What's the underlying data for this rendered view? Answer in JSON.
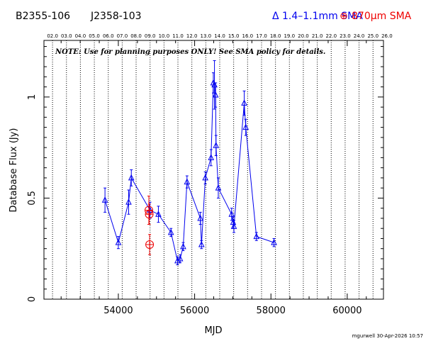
{
  "header": {
    "source_name": "B2355-106",
    "alt_name": "J2358-103",
    "legend": [
      {
        "symbol": "Δ",
        "label": "1.4–1.1mm SMA",
        "color": "#0000ee"
      },
      {
        "symbol": "⊕",
        "label": "870μm SMA",
        "color": "#ee0000"
      }
    ]
  },
  "note": "NOTE: Use for planning purposes ONLY! See SMA policy for details.",
  "footer": "mgurwell 30-Apr-2026 10:57",
  "chart_data": {
    "type": "scatter",
    "xlabel": "MJD",
    "ylabel": "Database Flux (Jy)",
    "xlim": [
      52050,
      60950
    ],
    "ylim": [
      0,
      1.28
    ],
    "x_ticks": [
      54000,
      56000,
      58000,
      60000
    ],
    "y_ticks": [
      0,
      0.5,
      1
    ],
    "y_tick_labels": [
      "0",
      "0.5",
      "1"
    ],
    "top_axis": {
      "labels": [
        "02.0",
        "03.0",
        "04.0",
        "05.0",
        "06.0",
        "07.0",
        "08.0",
        "09.0",
        "10.0",
        "11.0",
        "12.0",
        "13.0",
        "14.0",
        "15.0",
        "16.0",
        "17.0",
        "18.0",
        "19.0",
        "20.0",
        "21.0",
        "22.0",
        "23.0",
        "24.0",
        "25.0",
        "26.0"
      ],
      "mjd": [
        52275,
        52640,
        53005,
        53371,
        53736,
        54101,
        54466,
        54832,
        55197,
        55562,
        55927,
        56293,
        56658,
        57023,
        57388,
        57754,
        58119,
        58484,
        58849,
        59215,
        59580,
        59945,
        60310,
        60676,
        61041
      ]
    },
    "series": [
      {
        "name": "1.4–1.1mm SMA",
        "color": "#0000ee",
        "marker": "triangle",
        "connected": true,
        "points": [
          {
            "x": 53650,
            "y": 0.49,
            "err": 0.06
          },
          {
            "x": 54000,
            "y": 0.28,
            "err": 0.03
          },
          {
            "x": 54270,
            "y": 0.48,
            "err": 0.06
          },
          {
            "x": 54340,
            "y": 0.6,
            "err": 0.04
          },
          {
            "x": 54830,
            "y": 0.44,
            "err": 0.04
          },
          {
            "x": 55050,
            "y": 0.42,
            "err": 0.04
          },
          {
            "x": 55380,
            "y": 0.33,
            "err": 0.02
          },
          {
            "x": 55550,
            "y": 0.19,
            "err": 0.02
          },
          {
            "x": 55620,
            "y": 0.2,
            "err": 0.02
          },
          {
            "x": 55700,
            "y": 0.26,
            "err": 0.02
          },
          {
            "x": 55800,
            "y": 0.58,
            "err": 0.03
          },
          {
            "x": 56150,
            "y": 0.4,
            "err": 0.03
          },
          {
            "x": 56180,
            "y": 0.27,
            "err": 0.02
          },
          {
            "x": 56280,
            "y": 0.6,
            "err": 0.03
          },
          {
            "x": 56430,
            "y": 0.7,
            "err": 0.04
          },
          {
            "x": 56490,
            "y": 1.07,
            "err": 0.05
          },
          {
            "x": 56520,
            "y": 1.06,
            "err": 0.12
          },
          {
            "x": 56550,
            "y": 1.01,
            "err": 0.06
          },
          {
            "x": 56560,
            "y": 0.76,
            "err": 0.05
          },
          {
            "x": 56620,
            "y": 0.55,
            "err": 0.05
          },
          {
            "x": 56970,
            "y": 0.42,
            "err": 0.03
          },
          {
            "x": 57010,
            "y": 0.38,
            "err": 0.03
          },
          {
            "x": 57030,
            "y": 0.36,
            "err": 0.03
          },
          {
            "x": 57300,
            "y": 0.97,
            "err": 0.06
          },
          {
            "x": 57340,
            "y": 0.85,
            "err": 0.04
          },
          {
            "x": 57620,
            "y": 0.31,
            "err": 0.02
          },
          {
            "x": 58080,
            "y": 0.28,
            "err": 0.02
          }
        ]
      },
      {
        "name": "870μm SMA",
        "color": "#ee0000",
        "marker": "circle-plus",
        "connected": false,
        "points": [
          {
            "x": 54800,
            "y": 0.44,
            "err": 0.07
          },
          {
            "x": 54810,
            "y": 0.42,
            "err": 0.05
          },
          {
            "x": 54820,
            "y": 0.27,
            "err": 0.05
          }
        ]
      }
    ]
  }
}
